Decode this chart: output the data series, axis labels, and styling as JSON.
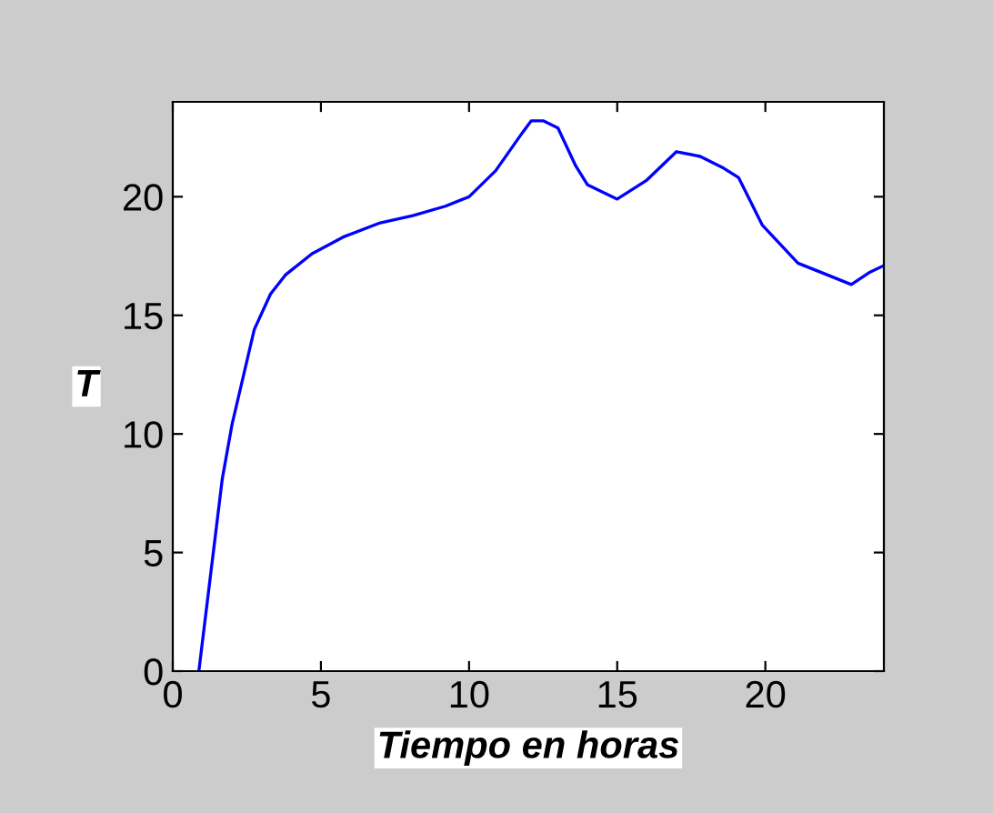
{
  "chart_data": {
    "type": "line",
    "xlabel": "Tiempo en horas",
    "ylabel": "T",
    "xlim": [
      0,
      24
    ],
    "ylim": [
      0,
      24
    ],
    "xticks": [
      0,
      5,
      10,
      15,
      20
    ],
    "yticks": [
      0,
      5,
      10,
      15,
      20
    ],
    "grid": false,
    "marker": "none",
    "line_style": "solid",
    "x": [
      0.88,
      1.67,
      2.0,
      2.75,
      3.3,
      3.8,
      4.7,
      5.75,
      7.0,
      8.1,
      9.2,
      10.0,
      10.9,
      11.8,
      12.1,
      12.5,
      13.0,
      13.6,
      14.0,
      15.0,
      16.0,
      17.0,
      17.8,
      18.6,
      19.1,
      19.9,
      21.1,
      22.1,
      22.9,
      23.5,
      24.0
    ],
    "series": [
      {
        "color": "#0000ff",
        "values": [
          0,
          8.1,
          10.4,
          14.4,
          15.9,
          16.7,
          17.6,
          18.3,
          18.9,
          19.2,
          19.6,
          20.0,
          21.1,
          22.7,
          23.2,
          23.2,
          22.9,
          21.3,
          20.5,
          19.9,
          20.7,
          21.9,
          21.7,
          21.2,
          20.8,
          18.8,
          17.2,
          16.7,
          16.3,
          16.8,
          17.1
        ]
      }
    ]
  }
}
